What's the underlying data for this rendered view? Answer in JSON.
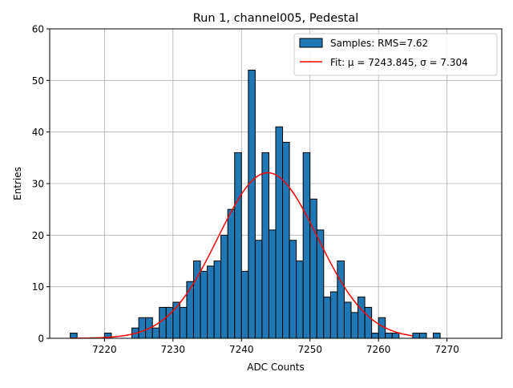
{
  "chart_data": {
    "type": "bar",
    "title": "Run 1, channel005, Pedestal",
    "xlabel": "ADC Counts",
    "ylabel": "Entries",
    "xlim": [
      7212.0,
      7278.0
    ],
    "ylim": [
      0,
      60
    ],
    "xticks": [
      7220,
      7230,
      7240,
      7250,
      7260,
      7270
    ],
    "yticks": [
      0,
      10,
      20,
      30,
      40,
      50,
      60
    ],
    "grid": true,
    "legend_position": "top-right",
    "bin_width": 1,
    "bins_x": [
      7215,
      7216,
      7217,
      7218,
      7219,
      7220,
      7221,
      7222,
      7223,
      7224,
      7225,
      7226,
      7227,
      7228,
      7229,
      7230,
      7231,
      7232,
      7233,
      7234,
      7235,
      7236,
      7237,
      7238,
      7239,
      7240,
      7241,
      7242,
      7243,
      7244,
      7245,
      7246,
      7247,
      7248,
      7249,
      7250,
      7251,
      7252,
      7253,
      7254,
      7255,
      7256,
      7257,
      7258,
      7259,
      7260,
      7261,
      7262,
      7263,
      7264,
      7265,
      7266,
      7267,
      7268,
      7269,
      7270,
      7271,
      7272,
      7273,
      7274
    ],
    "counts": [
      1,
      0,
      0,
      0,
      0,
      1,
      0,
      0,
      0,
      2,
      4,
      4,
      2,
      6,
      6,
      7,
      6,
      11,
      15,
      13,
      14,
      15,
      20,
      25,
      36,
      13,
      52,
      19,
      36,
      21,
      41,
      38,
      19,
      15,
      36,
      27,
      21,
      8,
      9,
      15,
      7,
      5,
      8,
      6,
      1,
      4,
      1,
      1,
      0,
      0,
      1,
      1,
      0,
      1,
      0,
      0,
      0,
      0,
      0,
      0
    ],
    "series": [
      {
        "name": "Samples: RMS=7.62",
        "kind": "histogram",
        "color": "#1f77b4",
        "edgecolor": "#000000"
      },
      {
        "name": "Fit: μ = 7243.845, σ = 7.304",
        "kind": "gaussian-fit",
        "color": "#ff0000",
        "mu": 7243.845,
        "sigma": 7.304,
        "amplitude": 32.1
      }
    ]
  }
}
